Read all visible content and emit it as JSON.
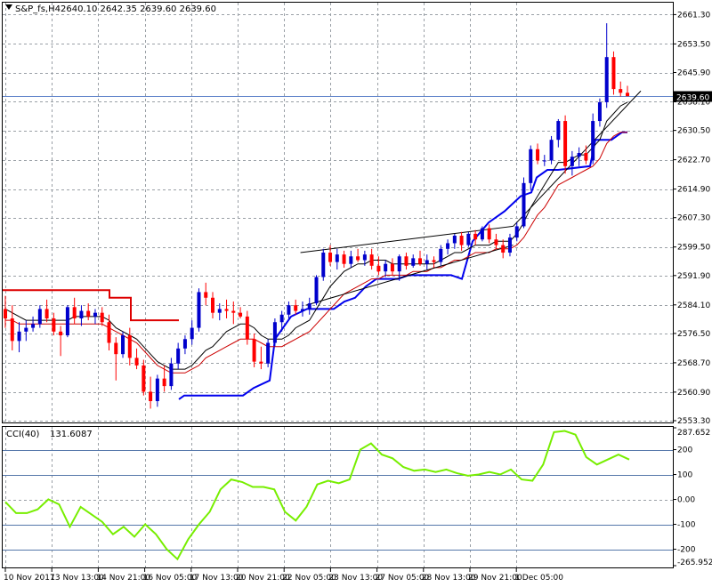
{
  "header": {
    "symbol": "S&P_fs,H4",
    "ohlc": "2640.10 2642.35 2639.60 2639.60"
  },
  "colors": {
    "bull_candle": "#0000cc",
    "bear_candle": "#ff0000",
    "ma_fast": "#000000",
    "ma_slow": "#cc0000",
    "stop_upper": "#dd0000",
    "stop_lower": "#0000ee",
    "cci": "#77ee00",
    "current_price_line": "#6688cc",
    "trendline": "#000000"
  },
  "chart_data": [
    {
      "type": "candlestick",
      "symbol": "S&P_fs,H4",
      "title": "S&P_fs,H4  2640.10 2642.35 2639.60 2639.60",
      "current_price": 2639.6,
      "current_price_label": "2639.60",
      "ylim": [
        2553.3,
        2664.0
      ],
      "y_ticks": [
        "2661.30",
        "2653.50",
        "2645.90",
        "2638.10",
        "2630.50",
        "2622.70",
        "2614.90",
        "2607.30",
        "2599.50",
        "2591.90",
        "2584.10",
        "2576.50",
        "2568.70",
        "2560.90",
        "2553.30"
      ],
      "x_labels": [
        "10 Nov 2017",
        "13 Nov 13:00",
        "14 Nov 21:00",
        "16 Nov 05:00",
        "17 Nov 13:00",
        "20 Nov 21:00",
        "22 Nov 05:00",
        "23 Nov 13:00",
        "27 Nov 05:00",
        "28 Nov 13:00",
        "29 Nov 21:00",
        "1 Dec 05:00"
      ],
      "x_label_index": [
        0,
        9,
        18,
        27,
        36,
        45,
        54,
        63,
        72,
        81,
        90,
        99
      ],
      "candles": [
        {
          "o": 2583.0,
          "h": 2586.5,
          "l": 2578.0,
          "c": 2580.5
        },
        {
          "o": 2580.5,
          "h": 2584.0,
          "l": 2572.0,
          "c": 2574.5
        },
        {
          "o": 2574.5,
          "h": 2579.5,
          "l": 2571.5,
          "c": 2577.0
        },
        {
          "o": 2577.0,
          "h": 2580.0,
          "l": 2574.5,
          "c": 2578.0
        },
        {
          "o": 2578.0,
          "h": 2581.0,
          "l": 2577.0,
          "c": 2579.0
        },
        {
          "o": 2579.0,
          "h": 2584.0,
          "l": 2578.0,
          "c": 2583.0
        },
        {
          "o": 2583.0,
          "h": 2585.5,
          "l": 2579.5,
          "c": 2580.5
        },
        {
          "o": 2580.5,
          "h": 2582.0,
          "l": 2576.0,
          "c": 2577.0
        },
        {
          "o": 2577.0,
          "h": 2578.5,
          "l": 2570.5,
          "c": 2576.0
        },
        {
          "o": 2576.0,
          "h": 2584.0,
          "l": 2575.5,
          "c": 2583.5
        },
        {
          "o": 2583.5,
          "h": 2586.0,
          "l": 2579.0,
          "c": 2580.5
        },
        {
          "o": 2580.5,
          "h": 2584.0,
          "l": 2578.5,
          "c": 2582.5
        },
        {
          "o": 2582.5,
          "h": 2584.5,
          "l": 2580.0,
          "c": 2581.0
        },
        {
          "o": 2581.0,
          "h": 2583.0,
          "l": 2579.0,
          "c": 2582.0
        },
        {
          "o": 2582.0,
          "h": 2583.5,
          "l": 2578.5,
          "c": 2579.5
        },
        {
          "o": 2579.5,
          "h": 2581.5,
          "l": 2572.0,
          "c": 2574.0
        },
        {
          "o": 2574.0,
          "h": 2575.5,
          "l": 2564.0,
          "c": 2571.0
        },
        {
          "o": 2571.0,
          "h": 2577.0,
          "l": 2570.0,
          "c": 2576.0
        },
        {
          "o": 2576.0,
          "h": 2578.0,
          "l": 2568.0,
          "c": 2570.0
        },
        {
          "o": 2570.0,
          "h": 2572.5,
          "l": 2567.0,
          "c": 2568.0
        },
        {
          "o": 2568.0,
          "h": 2569.5,
          "l": 2560.0,
          "c": 2561.0
        },
        {
          "o": 2561.0,
          "h": 2565.0,
          "l": 2556.5,
          "c": 2558.5
        },
        {
          "o": 2558.5,
          "h": 2565.5,
          "l": 2557.0,
          "c": 2564.5
        },
        {
          "o": 2564.5,
          "h": 2568.0,
          "l": 2561.0,
          "c": 2562.5
        },
        {
          "o": 2562.5,
          "h": 2570.0,
          "l": 2561.5,
          "c": 2568.5
        },
        {
          "o": 2568.5,
          "h": 2574.0,
          "l": 2567.0,
          "c": 2572.5
        },
        {
          "o": 2572.5,
          "h": 2576.0,
          "l": 2571.0,
          "c": 2575.0
        },
        {
          "o": 2575.0,
          "h": 2580.0,
          "l": 2573.5,
          "c": 2578.0
        },
        {
          "o": 2578.0,
          "h": 2588.5,
          "l": 2577.0,
          "c": 2587.5
        },
        {
          "o": 2587.5,
          "h": 2590.0,
          "l": 2584.0,
          "c": 2586.0
        },
        {
          "o": 2586.0,
          "h": 2587.5,
          "l": 2580.5,
          "c": 2582.0
        },
        {
          "o": 2582.0,
          "h": 2584.5,
          "l": 2580.0,
          "c": 2583.0
        },
        {
          "o": 2583.0,
          "h": 2585.5,
          "l": 2580.5,
          "c": 2582.5
        },
        {
          "o": 2582.5,
          "h": 2585.0,
          "l": 2579.0,
          "c": 2582.0
        },
        {
          "o": 2582.0,
          "h": 2583.5,
          "l": 2580.5,
          "c": 2581.0
        },
        {
          "o": 2581.0,
          "h": 2582.5,
          "l": 2573.5,
          "c": 2575.0
        },
        {
          "o": 2575.0,
          "h": 2576.5,
          "l": 2567.5,
          "c": 2569.0
        },
        {
          "o": 2569.0,
          "h": 2573.0,
          "l": 2567.0,
          "c": 2568.5
        },
        {
          "o": 2568.5,
          "h": 2575.0,
          "l": 2567.5,
          "c": 2574.0
        },
        {
          "o": 2574.0,
          "h": 2580.5,
          "l": 2573.0,
          "c": 2579.5
        },
        {
          "o": 2579.5,
          "h": 2582.5,
          "l": 2577.0,
          "c": 2581.5
        },
        {
          "o": 2581.5,
          "h": 2585.0,
          "l": 2580.5,
          "c": 2584.0
        },
        {
          "o": 2584.0,
          "h": 2585.5,
          "l": 2581.5,
          "c": 2582.5
        },
        {
          "o": 2582.5,
          "h": 2585.0,
          "l": 2581.0,
          "c": 2583.0
        },
        {
          "o": 2583.0,
          "h": 2586.0,
          "l": 2581.5,
          "c": 2584.5
        },
        {
          "o": 2584.5,
          "h": 2592.0,
          "l": 2584.0,
          "c": 2591.5
        },
        {
          "o": 2591.5,
          "h": 2599.0,
          "l": 2590.5,
          "c": 2598.0
        },
        {
          "o": 2598.0,
          "h": 2600.0,
          "l": 2594.5,
          "c": 2595.5
        },
        {
          "o": 2595.5,
          "h": 2599.0,
          "l": 2593.5,
          "c": 2597.5
        },
        {
          "o": 2597.5,
          "h": 2598.5,
          "l": 2594.0,
          "c": 2595.0
        },
        {
          "o": 2595.0,
          "h": 2598.5,
          "l": 2594.0,
          "c": 2597.0
        },
        {
          "o": 2597.0,
          "h": 2599.0,
          "l": 2595.5,
          "c": 2596.0
        },
        {
          "o": 2596.0,
          "h": 2598.5,
          "l": 2594.5,
          "c": 2597.5
        },
        {
          "o": 2597.5,
          "h": 2599.0,
          "l": 2593.5,
          "c": 2594.5
        },
        {
          "o": 2594.5,
          "h": 2597.0,
          "l": 2592.0,
          "c": 2593.0
        },
        {
          "o": 2593.0,
          "h": 2596.0,
          "l": 2591.5,
          "c": 2595.0
        },
        {
          "o": 2595.0,
          "h": 2596.5,
          "l": 2592.0,
          "c": 2593.0
        },
        {
          "o": 2593.0,
          "h": 2597.5,
          "l": 2590.5,
          "c": 2597.0
        },
        {
          "o": 2597.0,
          "h": 2598.0,
          "l": 2593.5,
          "c": 2594.5
        },
        {
          "o": 2594.5,
          "h": 2597.5,
          "l": 2594.0,
          "c": 2596.5
        },
        {
          "o": 2596.5,
          "h": 2598.5,
          "l": 2594.5,
          "c": 2595.0
        },
        {
          "o": 2595.0,
          "h": 2597.5,
          "l": 2593.5,
          "c": 2596.0
        },
        {
          "o": 2596.0,
          "h": 2597.0,
          "l": 2594.0,
          "c": 2595.5
        },
        {
          "o": 2595.5,
          "h": 2600.0,
          "l": 2594.5,
          "c": 2599.0
        },
        {
          "o": 2599.0,
          "h": 2601.5,
          "l": 2597.5,
          "c": 2600.5
        },
        {
          "o": 2600.5,
          "h": 2603.0,
          "l": 2599.0,
          "c": 2602.5
        },
        {
          "o": 2602.5,
          "h": 2603.5,
          "l": 2598.5,
          "c": 2600.0
        },
        {
          "o": 2600.0,
          "h": 2603.5,
          "l": 2599.5,
          "c": 2603.0
        },
        {
          "o": 2603.0,
          "h": 2604.0,
          "l": 2600.0,
          "c": 2601.5
        },
        {
          "o": 2601.5,
          "h": 2605.0,
          "l": 2601.0,
          "c": 2604.5
        },
        {
          "o": 2604.5,
          "h": 2605.5,
          "l": 2600.5,
          "c": 2601.5
        },
        {
          "o": 2601.5,
          "h": 2603.0,
          "l": 2599.0,
          "c": 2600.0
        },
        {
          "o": 2600.0,
          "h": 2601.5,
          "l": 2596.5,
          "c": 2598.0
        },
        {
          "o": 2598.0,
          "h": 2603.0,
          "l": 2597.0,
          "c": 2602.0
        },
        {
          "o": 2602.0,
          "h": 2606.0,
          "l": 2601.0,
          "c": 2605.0
        },
        {
          "o": 2605.0,
          "h": 2618.0,
          "l": 2604.5,
          "c": 2616.5
        },
        {
          "o": 2616.5,
          "h": 2626.5,
          "l": 2614.5,
          "c": 2625.5
        },
        {
          "o": 2625.5,
          "h": 2627.0,
          "l": 2621.5,
          "c": 2622.5
        },
        {
          "o": 2622.5,
          "h": 2624.0,
          "l": 2621.0,
          "c": 2622.5
        },
        {
          "o": 2622.5,
          "h": 2629.0,
          "l": 2621.5,
          "c": 2628.0
        },
        {
          "o": 2628.0,
          "h": 2633.5,
          "l": 2626.0,
          "c": 2633.0
        },
        {
          "o": 2633.0,
          "h": 2634.5,
          "l": 2619.0,
          "c": 2621.0
        },
        {
          "o": 2621.0,
          "h": 2625.0,
          "l": 2618.5,
          "c": 2623.5
        },
        {
          "o": 2623.5,
          "h": 2626.0,
          "l": 2621.0,
          "c": 2624.5
        },
        {
          "o": 2624.5,
          "h": 2626.5,
          "l": 2621.5,
          "c": 2622.5
        },
        {
          "o": 2622.5,
          "h": 2635.0,
          "l": 2621.5,
          "c": 2633.0
        },
        {
          "o": 2633.0,
          "h": 2639.0,
          "l": 2631.5,
          "c": 2638.0
        },
        {
          "o": 2638.0,
          "h": 2659.0,
          "l": 2636.5,
          "c": 2650.0
        },
        {
          "o": 2650.0,
          "h": 2651.5,
          "l": 2640.0,
          "c": 2641.5
        },
        {
          "o": 2641.5,
          "h": 2643.5,
          "l": 2639.5,
          "c": 2640.5
        },
        {
          "o": 2640.5,
          "h": 2642.35,
          "l": 2639.6,
          "c": 2639.6
        }
      ],
      "candle_index_offset": 0,
      "candle_index_map_note": "",
      "ma_fast": [
        2583,
        2582,
        2581,
        2580,
        2580,
        2580,
        2580,
        2580,
        2580,
        2580,
        2581,
        2581,
        2581,
        2581,
        2581,
        2580,
        2578,
        2577,
        2576,
        2575,
        2573,
        2571,
        2569,
        2568,
        2567,
        2567,
        2567,
        2568,
        2570,
        2572,
        2573,
        2575,
        2577,
        2578,
        2579,
        2579,
        2578,
        2576,
        2575,
        2575,
        2575,
        2576,
        2578,
        2579,
        2580,
        2583,
        2586,
        2589,
        2591,
        2593,
        2594,
        2595,
        2595,
        2596,
        2596,
        2596,
        2595,
        2595,
        2595,
        2595,
        2595,
        2595,
        2595,
        2596,
        2597,
        2598,
        2598,
        2599,
        2600,
        2600,
        2600,
        2601,
        2601,
        2601,
        2603,
        2606,
        2610,
        2613,
        2616,
        2619,
        2622,
        2622,
        2623,
        2624,
        2624,
        2626,
        2628,
        2633,
        2635,
        2637,
        2638
      ],
      "ma_slow": [
        2580,
        2580,
        2579,
        2579,
        2579,
        2579,
        2579,
        2579,
        2579,
        2579,
        2579,
        2579,
        2579,
        2579,
        2579,
        2578,
        2577,
        2576,
        2575,
        2574,
        2572,
        2570,
        2568,
        2567,
        2566,
        2566,
        2566,
        2567,
        2568,
        2570,
        2571,
        2572,
        2573,
        2574,
        2575,
        2575,
        2575,
        2574,
        2573,
        2573,
        2573,
        2574,
        2575,
        2576,
        2577,
        2579,
        2581,
        2583,
        2585,
        2587,
        2588,
        2589,
        2590,
        2591,
        2591,
        2592,
        2592,
        2592,
        2592,
        2593,
        2593,
        2593,
        2594,
        2594,
        2595,
        2596,
        2596,
        2597,
        2598,
        2598,
        2598,
        2599,
        2599,
        2599,
        2600,
        2602,
        2605,
        2608,
        2610,
        2613,
        2616,
        2617,
        2618,
        2619,
        2620,
        2621,
        2623,
        2627,
        2629,
        2630,
        2630
      ],
      "stop_upper": [
        [
          0,
          2588
        ],
        [
          20,
          2588
        ],
        [
          20,
          2586
        ],
        [
          24,
          2586
        ],
        [
          24,
          2580
        ],
        [
          33,
          2580
        ]
      ],
      "stop_lower": [
        [
          33,
          2559
        ],
        [
          34,
          2560
        ],
        [
          45,
          2560
        ],
        [
          47,
          2562
        ],
        [
          50,
          2564
        ],
        [
          51,
          2575
        ],
        [
          54,
          2581
        ],
        [
          57,
          2583
        ],
        [
          62,
          2583
        ],
        [
          64,
          2585
        ],
        [
          66,
          2586
        ],
        [
          68,
          2589
        ],
        [
          70,
          2591
        ],
        [
          73,
          2591
        ],
        [
          74,
          2591
        ],
        [
          76,
          2592
        ],
        [
          78,
          2592
        ],
        [
          84,
          2592
        ],
        [
          86,
          2591
        ],
        [
          88,
          2601
        ],
        [
          91,
          2606
        ],
        [
          94,
          2609
        ],
        [
          97,
          2613
        ],
        [
          99,
          2614
        ],
        [
          100,
          2618
        ],
        [
          102,
          2620
        ],
        [
          104,
          2620
        ],
        [
          110,
          2621
        ],
        [
          111,
          2628
        ],
        [
          114,
          2628
        ],
        [
          116,
          2630
        ],
        [
          117,
          2630
        ]
      ],
      "trendlines": [
        {
          "from": [
            56,
            2598
          ],
          "to": [
            96,
            2605
          ]
        },
        {
          "from": [
            57,
            2584
          ],
          "to": [
            96,
            2600
          ]
        },
        {
          "from": [
            96,
            2605
          ],
          "to": [
            120,
            2641
          ]
        }
      ]
    },
    {
      "type": "line",
      "title": "CCI(40) 131.6087",
      "indicator": "CCI(40)",
      "value": "131.6087",
      "ylim": [
        -265.9521,
        287.652
      ],
      "y_ticks": [
        "287.652",
        "200",
        "100",
        "0.00",
        "-100",
        "-200",
        "-265.9521"
      ],
      "levels": [
        200,
        100,
        -100,
        -200
      ],
      "x": [
        0,
        2,
        4,
        6,
        8,
        10,
        12,
        14,
        16,
        18,
        20,
        22,
        24,
        26,
        28,
        30,
        32,
        34,
        36,
        38,
        40,
        42,
        44,
        46,
        48,
        50,
        52,
        54,
        56,
        58,
        60,
        62,
        64,
        66,
        68,
        70,
        72,
        74,
        76,
        78,
        80,
        82,
        84,
        86,
        88,
        90,
        92,
        94,
        96,
        98,
        100,
        102,
        104,
        106,
        108,
        110,
        112,
        114,
        116
      ],
      "values": [
        -10,
        -55,
        -55,
        -40,
        0,
        -20,
        -110,
        -30,
        -60,
        -90,
        -140,
        -110,
        -150,
        -100,
        -140,
        -200,
        -240,
        -160,
        -100,
        -50,
        40,
        80,
        70,
        50,
        50,
        40,
        -50,
        -85,
        -30,
        60,
        75,
        65,
        80,
        200,
        225,
        180,
        165,
        130,
        115,
        120,
        110,
        120,
        105,
        95,
        100,
        110,
        100,
        120,
        80,
        75,
        140,
        270,
        275,
        260,
        170,
        140,
        160,
        180,
        160
      ]
    }
  ]
}
